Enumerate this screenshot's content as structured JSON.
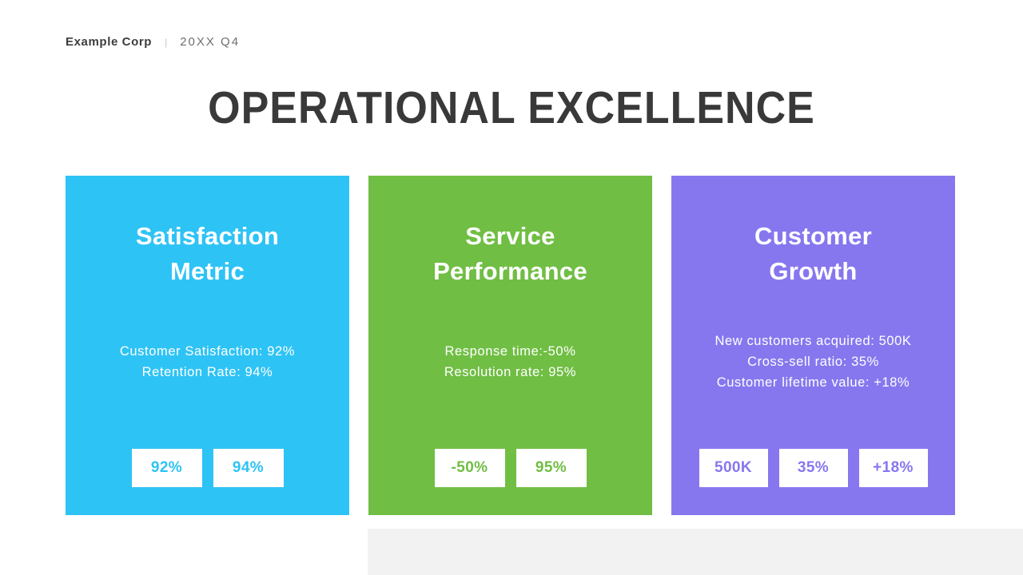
{
  "header": {
    "company": "Example Corp",
    "divider": "|",
    "period": "20XX Q4"
  },
  "title": "OPERATIONAL EXCELLENCE",
  "cards": [
    {
      "title": "Satisfaction Metric",
      "color": "#2EC3F5",
      "lines": [
        "Customer Satisfaction: 92%",
        "Retention Rate: 94%"
      ],
      "badges": [
        "92%",
        "94%"
      ]
    },
    {
      "title": "Service Performance",
      "color": "#70BE44",
      "lines": [
        "Response time:-50%",
        "Resolution rate: 95%"
      ],
      "badges": [
        "-50%",
        "95%"
      ]
    },
    {
      "title": "Customer Growth",
      "color": "#8677EF",
      "lines": [
        "New customers acquired: 500K",
        "Cross-sell ratio: 35%",
        "Customer lifetime value: +18%"
      ],
      "badges": [
        "500K",
        "35%",
        "+18%"
      ]
    }
  ]
}
